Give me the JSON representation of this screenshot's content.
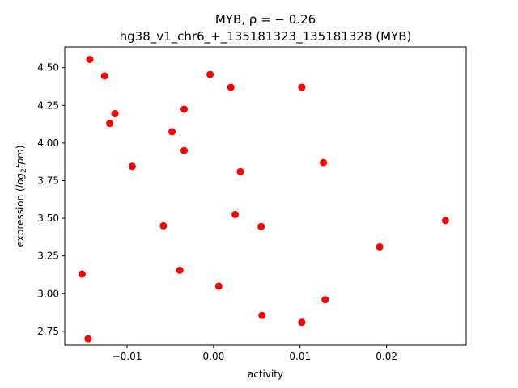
{
  "chart_data": {
    "type": "scatter",
    "title_line1": "MYB, ρ = − 0.26",
    "title_line2": "hg38_v1_chr6_+_135181323_135181328 (MYB)",
    "xlabel": "activity",
    "ylabel_prefix": "expression (",
    "ylabel_math": "log",
    "ylabel_sub": "2",
    "ylabel_math2": "tpm",
    "ylabel_suffix": ")",
    "xlim": [
      -0.0172,
      0.0292
    ],
    "ylim": [
      2.658,
      4.638
    ],
    "x_ticks": [
      {
        "value": -0.01,
        "label": "−0.01"
      },
      {
        "value": 0.0,
        "label": "0.00"
      },
      {
        "value": 0.01,
        "label": "0.01"
      },
      {
        "value": 0.02,
        "label": "0.02"
      }
    ],
    "y_ticks": [
      {
        "value": 2.75,
        "label": "2.75"
      },
      {
        "value": 3.0,
        "label": "3.00"
      },
      {
        "value": 3.25,
        "label": "3.25"
      },
      {
        "value": 3.5,
        "label": "3.50"
      },
      {
        "value": 3.75,
        "label": "3.75"
      },
      {
        "value": 4.0,
        "label": "4.00"
      },
      {
        "value": 4.25,
        "label": "4.25"
      },
      {
        "value": 4.5,
        "label": "4.50"
      }
    ],
    "marker_color": "#ff0000",
    "points": [
      {
        "x": -0.0143,
        "y": 4.555
      },
      {
        "x": -0.0126,
        "y": 4.445
      },
      {
        "x": -0.0114,
        "y": 4.195
      },
      {
        "x": -0.012,
        "y": 4.13
      },
      {
        "x": -0.0094,
        "y": 3.845
      },
      {
        "x": -0.0152,
        "y": 3.13
      },
      {
        "x": -0.0145,
        "y": 2.7
      },
      {
        "x": -0.0058,
        "y": 3.45
      },
      {
        "x": -0.0048,
        "y": 4.075
      },
      {
        "x": -0.0034,
        "y": 4.225
      },
      {
        "x": -0.0034,
        "y": 3.95
      },
      {
        "x": -0.0039,
        "y": 3.155
      },
      {
        "x": -0.0004,
        "y": 4.455
      },
      {
        "x": 0.002,
        "y": 4.37
      },
      {
        "x": 0.0031,
        "y": 3.81
      },
      {
        "x": 0.0025,
        "y": 3.525
      },
      {
        "x": 0.0055,
        "y": 3.445
      },
      {
        "x": 0.0006,
        "y": 3.05
      },
      {
        "x": 0.0056,
        "y": 2.855
      },
      {
        "x": 0.0102,
        "y": 4.37
      },
      {
        "x": 0.0127,
        "y": 3.87
      },
      {
        "x": 0.0129,
        "y": 2.96
      },
      {
        "x": 0.0102,
        "y": 2.81
      },
      {
        "x": 0.0192,
        "y": 3.31
      },
      {
        "x": 0.0268,
        "y": 3.485
      }
    ]
  }
}
